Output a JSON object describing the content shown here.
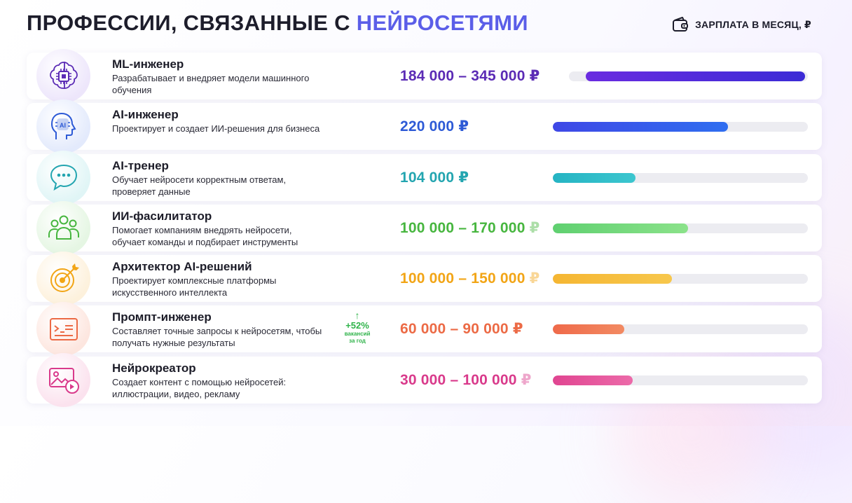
{
  "header": {
    "title_part1": "ПРОФЕССИИ, СВЯЗАННЫЕ С",
    "title_accent": "НЕЙРОСЕТЯМИ",
    "legend_label": "ЗАРПЛАТА В МЕСЯЦ, ₽",
    "legend_icon": "wallet-icon"
  },
  "colors": {
    "accent": "#5b5ee8",
    "track": "#ececf1"
  },
  "chart_data": {
    "type": "bar",
    "orientation": "horizontal",
    "title": "ПРОФЕССИИ, СВЯЗАННЫЕ С НЕЙРОСЕТЯМИ",
    "value_label": "ЗАРПЛАТА В МЕСЯЦ, ₽",
    "xlim": [
      0,
      360000
    ],
    "grid": false,
    "categories": [
      "ML-инженер",
      "AI-инженер",
      "AI-тренер",
      "ИИ-фасилитатор",
      "Архитектор AI-решений",
      "Промпт-инженер",
      "Нейрокреатор"
    ],
    "series": [
      {
        "values_min": [
          184000,
          220000,
          104000,
          100000,
          100000,
          60000,
          30000
        ],
        "values_max": [
          345000,
          220000,
          104000,
          170000,
          150000,
          90000,
          100000
        ]
      }
    ]
  },
  "professions": [
    {
      "title": "ML-инженер",
      "desc": "Разрабатывает и внедряет модели машинного обучения",
      "salary": "184 000 – 345 000",
      "currency": "₽",
      "min": 184000,
      "max": 345000,
      "color": "#5b2bb5",
      "bar_from": "#6a2be0",
      "bar_to": "#3b2bd6",
      "soft": "#ede6fb",
      "icon": "chip-brain-icon"
    },
    {
      "title": "AI-инженер",
      "desc": "Проектирует и создает ИИ-решения для бизнеса",
      "salary": "220 000",
      "currency": "₽",
      "min": 220000,
      "max": 220000,
      "color": "#2d5ad6",
      "bar_from": "#3f48e6",
      "bar_to": "#2f6ef0",
      "soft": "#e3eafc",
      "icon": "ai-head-icon"
    },
    {
      "title": "AI-тренер",
      "desc": "Обучает нейросети корректным ответам, проверяет данные",
      "salary": "104 000",
      "currency": "₽",
      "min": 104000,
      "max": 104000,
      "color": "#23a5b0",
      "bar_from": "#25b4c3",
      "bar_to": "#3cc6cf",
      "soft": "#e0f5f6",
      "icon": "chat-bubble-icon"
    },
    {
      "title": "ИИ-фасилитатор",
      "desc": "Помогает компаниям внедрять нейросети, обучает команды и подбирает инструменты",
      "salary": "100 000 – 170 000",
      "currency": "₽",
      "min": 100000,
      "max": 170000,
      "color": "#47b63f",
      "bar_from": "#5fd070",
      "bar_to": "#8be28a",
      "soft": "#e5f6e3",
      "icon": "team-icon"
    },
    {
      "title": "Архитектор AI-решений",
      "desc": "Проектирует комплексные платформы искусственного интеллекта",
      "salary": "100 000 – 150 000",
      "currency": "₽",
      "min": 100000,
      "max": 150000,
      "color": "#f2a516",
      "bar_from": "#f5b632",
      "bar_to": "#f7c74c",
      "soft": "#fdf1dc",
      "icon": "target-icon"
    },
    {
      "title": "Промпт-инженер",
      "desc": "Составляет точные запросы к нейросетям, чтобы получать нужные результаты",
      "salary": "60 000 – 90 000",
      "currency": "₽",
      "min": 60000,
      "max": 90000,
      "color": "#ec6a45",
      "bar_from": "#ef6a4a",
      "bar_to": "#f28a62",
      "soft": "#fde6df",
      "icon": "terminal-icon",
      "growth": {
        "arrow": "↑",
        "value": "+52%",
        "note1": "вакансий",
        "note2": "за год",
        "color": "#2fb34a"
      }
    },
    {
      "title": "Нейрокреатор",
      "desc": "Создает контент с помощью нейросетей: иллюстрации, видео, рекламу",
      "salary": "30 000 – 100 000",
      "currency": "₽",
      "min": 30000,
      "max": 100000,
      "color": "#d93a8b",
      "bar_from": "#e04591",
      "bar_to": "#ec6aa9",
      "soft": "#fbe2ee",
      "icon": "media-icon"
    }
  ]
}
